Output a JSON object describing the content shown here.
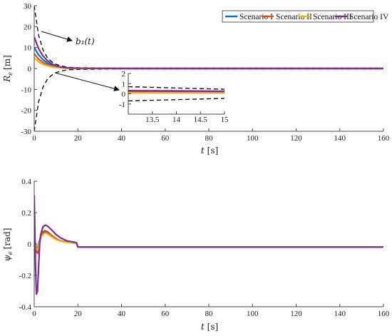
{
  "chart_data": [
    {
      "type": "line",
      "ylabel": "R_e [m]",
      "ylabel_main": "R",
      "ylabel_sub": "e",
      "ylabel_unit": "[m]",
      "xlabel": "t [s]",
      "xlabel_main": "t",
      "xlabel_unit": "[s]",
      "xlim": [
        0,
        160
      ],
      "ylim": [
        -30,
        30
      ],
      "xticks": [
        "0",
        "20",
        "40",
        "60",
        "80",
        "100",
        "120",
        "140",
        "160"
      ],
      "yticks": [
        "30",
        "20",
        "10",
        "0",
        "-10",
        "-20",
        "-30"
      ],
      "legend": {
        "position": "top-right",
        "entries": [
          "Scenario I",
          "Scenario II",
          "Scenario III",
          "Scenario IV"
        ]
      },
      "annotation": "b₁(t)",
      "bound_label": "b_1(t)",
      "series": [
        {
          "name": "Scenario I",
          "color": "#0072BD",
          "x": [
            0,
            2,
            4,
            6,
            8,
            10,
            12,
            15,
            20,
            40,
            80,
            120,
            160
          ],
          "y": [
            10,
            6.5,
            4.2,
            2.7,
            1.6,
            0.9,
            0.5,
            0.2,
            0.1,
            0,
            0,
            0,
            0
          ]
        },
        {
          "name": "Scenario II",
          "color": "#D95319",
          "x": [
            0,
            2,
            4,
            6,
            8,
            10,
            12,
            15,
            20,
            40,
            80,
            120,
            160
          ],
          "y": [
            7,
            4.5,
            2.9,
            1.8,
            1.1,
            0.6,
            0.35,
            0.15,
            0.05,
            0,
            0,
            0,
            0
          ]
        },
        {
          "name": "Scenario III",
          "color": "#EDB120",
          "x": [
            0,
            2,
            4,
            6,
            8,
            10,
            12,
            15,
            20,
            40,
            80,
            120,
            160
          ],
          "y": [
            5,
            3.2,
            2.0,
            1.3,
            0.8,
            0.45,
            0.25,
            0.1,
            0.03,
            0,
            0,
            0,
            0
          ]
        },
        {
          "name": "Scenario IV",
          "color": "#7E2F8E",
          "x": [
            0,
            2,
            4,
            6,
            8,
            10,
            12,
            15,
            20,
            40,
            80,
            120,
            160
          ],
          "y": [
            15,
            9.5,
            6,
            3.8,
            2.3,
            1.3,
            0.7,
            0.3,
            0.1,
            0,
            0,
            0,
            0
          ]
        },
        {
          "name": "b1 upper",
          "color": "#000000",
          "dashed": true,
          "x": [
            0,
            2,
            4,
            6,
            8,
            10,
            12,
            14,
            16,
            20,
            40,
            80,
            120,
            160
          ],
          "y": [
            30,
            16,
            9,
            5.2,
            3.2,
            2.0,
            1.3,
            0.9,
            0.6,
            0.4,
            0.2,
            0.2,
            0.2,
            0.2
          ]
        },
        {
          "name": "b1 lower",
          "color": "#000000",
          "dashed": true,
          "x": [
            0,
            2,
            4,
            6,
            8,
            10,
            12,
            14,
            16,
            20,
            40,
            80,
            120,
            160
          ],
          "y": [
            -30,
            -16,
            -9,
            -5.2,
            -3.2,
            -2.0,
            -1.3,
            -0.9,
            -0.6,
            -0.4,
            -0.2,
            -0.2,
            -0.2,
            -0.2
          ]
        }
      ],
      "inset": {
        "xlim": [
          13,
          15
        ],
        "ylim": [
          -2,
          2
        ],
        "xticks": [
          "13.5",
          "14",
          "14.5",
          "15"
        ],
        "yticks": [
          "2",
          "1",
          "0",
          "-1"
        ],
        "series": [
          {
            "name": "b1 upper",
            "color": "#000000",
            "dashed": true,
            "x": [
              13,
              15
            ],
            "y": [
              0.7,
              0.45
            ]
          },
          {
            "name": "b1 lower",
            "color": "#000000",
            "dashed": true,
            "x": [
              13,
              15
            ],
            "y": [
              -0.7,
              -0.45
            ]
          },
          {
            "name": "Scenario I",
            "color": "#0072BD",
            "x": [
              13,
              15
            ],
            "y": [
              0.25,
              0.2
            ]
          },
          {
            "name": "Scenario II",
            "color": "#D95319",
            "x": [
              13,
              15
            ],
            "y": [
              0.15,
              0.12
            ]
          },
          {
            "name": "Scenario III",
            "color": "#EDB120",
            "x": [
              13,
              15
            ],
            "y": [
              0.1,
              0.08
            ]
          },
          {
            "name": "Scenario IV",
            "color": "#7E2F8E",
            "x": [
              13,
              15
            ],
            "y": [
              0.3,
              0.25
            ]
          }
        ]
      }
    },
    {
      "type": "line",
      "ylabel": "ψ_e [rad]",
      "ylabel_main": "ψ",
      "ylabel_sub": "e",
      "ylabel_unit": "[rad]",
      "xlabel": "t [s]",
      "xlabel_main": "t",
      "xlabel_unit": "[s]",
      "xlim": [
        0,
        160
      ],
      "ylim": [
        -0.4,
        0.4
      ],
      "xticks": [
        "0",
        "20",
        "40",
        "60",
        "80",
        "100",
        "120",
        "140",
        "160"
      ],
      "yticks": [
        "0.4",
        "0.2",
        "0",
        "-0.2",
        "-0.4"
      ],
      "series": [
        {
          "name": "Scenario I",
          "color": "#0072BD",
          "x": [
            0,
            0.5,
            1,
            1.5,
            2,
            3,
            4,
            5,
            6,
            8,
            10,
            12,
            15,
            18,
            19,
            19.5,
            20,
            22,
            30,
            60,
            100,
            160
          ],
          "y": [
            0.05,
            0,
            -0.02,
            -0.03,
            0,
            0.05,
            0.07,
            0.08,
            0.075,
            0.05,
            0.03,
            0.02,
            0.012,
            0.008,
            0.006,
            0,
            -0.02,
            -0.02,
            -0.02,
            -0.02,
            -0.02,
            -0.02
          ]
        },
        {
          "name": "Scenario II",
          "color": "#D95319",
          "x": [
            0,
            0.5,
            1,
            1.5,
            2,
            3,
            4,
            5,
            6,
            8,
            10,
            12,
            15,
            18,
            19,
            19.5,
            20,
            22,
            30,
            60,
            100,
            160
          ],
          "y": [
            0.03,
            -0.02,
            -0.05,
            -0.06,
            -0.02,
            0.05,
            0.08,
            0.085,
            0.08,
            0.055,
            0.035,
            0.02,
            0.012,
            0.008,
            0.006,
            0,
            -0.02,
            -0.02,
            -0.02,
            -0.02,
            -0.02,
            -0.02
          ]
        },
        {
          "name": "Scenario III",
          "color": "#EDB120",
          "x": [
            0,
            0.5,
            1,
            1.5,
            2,
            3,
            4,
            5,
            6,
            8,
            10,
            12,
            15,
            18,
            19,
            19.5,
            20,
            22,
            30,
            60,
            100,
            160
          ],
          "y": [
            0.02,
            0,
            -0.03,
            -0.04,
            -0.01,
            0.04,
            0.06,
            0.07,
            0.065,
            0.045,
            0.028,
            0.018,
            0.01,
            0.006,
            0.004,
            0,
            -0.02,
            -0.02,
            -0.02,
            -0.02,
            -0.02,
            -0.02
          ]
        },
        {
          "name": "Scenario IV",
          "color": "#7E2F8E",
          "x": [
            0,
            0.3,
            0.6,
            1,
            1.5,
            2,
            2.5,
            3,
            4,
            5,
            6,
            8,
            10,
            12,
            15,
            18,
            19,
            19.5,
            20,
            22,
            30,
            60,
            100,
            160
          ],
          "y": [
            0.31,
            0.1,
            -0.15,
            -0.32,
            -0.3,
            -0.15,
            0,
            0.06,
            0.11,
            0.12,
            0.115,
            0.09,
            0.06,
            0.04,
            0.02,
            0.012,
            0.01,
            0.005,
            -0.02,
            -0.02,
            -0.02,
            -0.02,
            -0.02,
            -0.02
          ]
        }
      ]
    }
  ]
}
